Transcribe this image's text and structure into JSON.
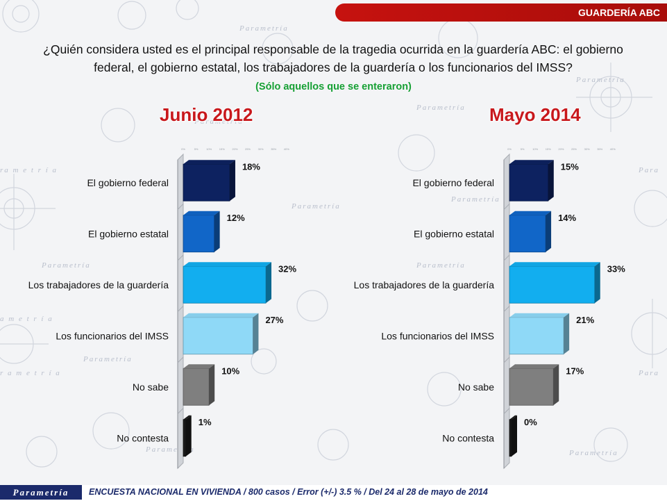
{
  "header": {
    "tag": "GUARDERÍA ABC"
  },
  "question": "¿Quién considera usted es el principal responsable de la tragedia ocurrida en la guardería ABC: el gobierno federal, el gobierno estatal, los trabajadores de la guardería o los funcionarios del IMSS?",
  "note": "(Sólo aquellos que se enteraron)",
  "colors": {
    "bars": [
      "#0d2260",
      "#1166c8",
      "#12aeef",
      "#8fd9f7",
      "#7f7f7f",
      "#1a1a1a"
    ],
    "title": "#c8181c",
    "note": "#16a034",
    "header": "#c6120f"
  },
  "chart_data": [
    {
      "type": "bar",
      "title": "Junio 2012",
      "categories": [
        "El gobierno federal",
        "El gobierno estatal",
        "Los trabajadores de la guardería",
        "Los funcionarios del IMSS",
        "No sabe",
        "No contesta"
      ],
      "values": [
        18,
        12,
        32,
        27,
        10,
        1
      ],
      "value_labels": [
        "18%",
        "12%",
        "32%",
        "27%",
        "10%",
        "1%"
      ],
      "xlim": [
        0,
        40
      ]
    },
    {
      "type": "bar",
      "title": "Mayo 2014",
      "categories": [
        "El gobierno federal",
        "El gobierno estatal",
        "Los trabajadores de la guardería",
        "Los funcionarios del IMSS",
        "No sabe",
        "No contesta"
      ],
      "values": [
        15,
        14,
        33,
        21,
        17,
        0
      ],
      "value_labels": [
        "15%",
        "14%",
        "33%",
        "21%",
        "17%",
        "0%"
      ],
      "xlim": [
        0,
        40
      ]
    }
  ],
  "footer": {
    "logo": "Parametría",
    "text": "ENCUESTA NACIONAL EN VIVIENDA / 800 casos / Error (+/-) 3.5 % / Del 24 al 28 de mayo de 2014"
  }
}
